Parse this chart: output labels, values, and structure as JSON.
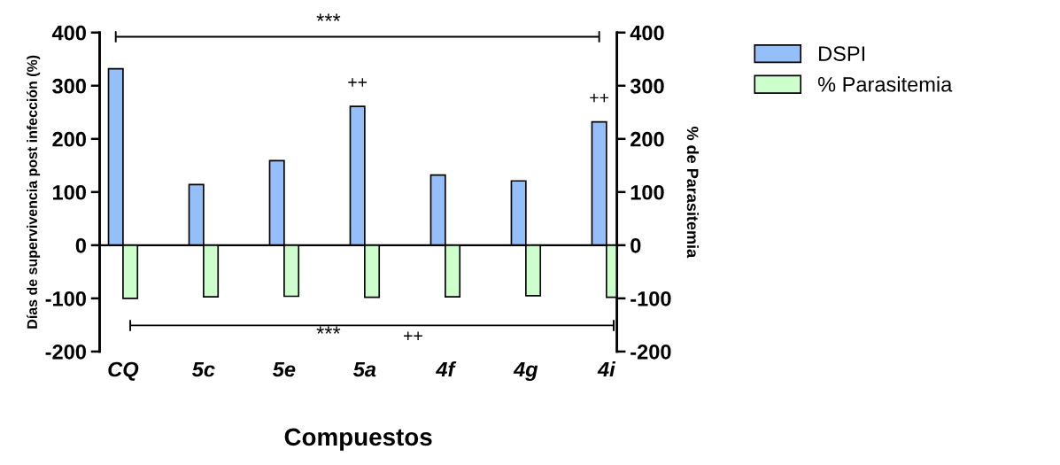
{
  "chart_data": {
    "type": "bar",
    "categories": [
      "CQ",
      "5c",
      "5e",
      "5a",
      "4f",
      "4g",
      "4i"
    ],
    "series": [
      {
        "name": "DSPI",
        "color": "#94bff8",
        "values": [
          332,
          114,
          159,
          261,
          132,
          121,
          232
        ]
      },
      {
        "name": "% Parasitemia",
        "color": "#ccffcc",
        "axis": "y2",
        "values": [
          -100,
          -97,
          -96,
          -98,
          -97,
          -95,
          -98
        ]
      }
    ],
    "xlabel": "Compuestos",
    "ylabel": "Días de supervivencia post infección (%)",
    "y2label": "% de Parasitemia",
    "ylim": [
      -200,
      400
    ],
    "yticks": [
      -200,
      -100,
      0,
      100,
      200,
      300,
      400
    ],
    "y2lim": [
      -200,
      400
    ],
    "y2ticks": [
      -200,
      -100,
      0,
      100,
      200,
      300,
      400
    ],
    "annotations": [
      "***",
      "***",
      "++",
      {
        "text": "++",
        "x": "5a",
        "y": 261
      },
      {
        "text": "++",
        "x": "4i",
        "y": 232
      }
    ],
    "legend": "right"
  }
}
